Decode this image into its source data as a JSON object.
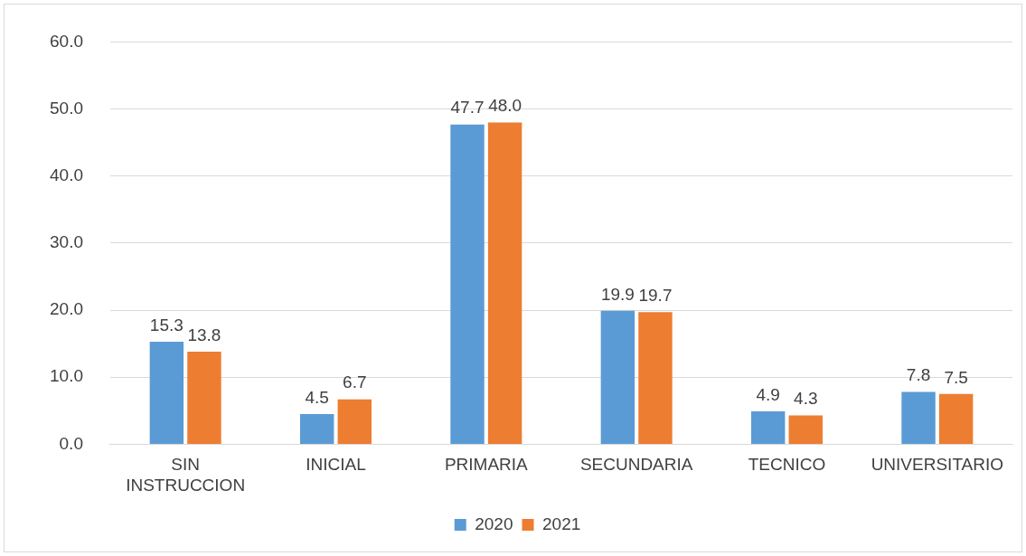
{
  "chart_data": {
    "type": "bar",
    "categories": [
      "SIN INSTRUCCION",
      "INICIAL",
      "PRIMARIA",
      "SECUNDARIA",
      "TECNICO",
      "UNIVERSITARIO"
    ],
    "series": [
      {
        "name": "2020",
        "color": "#5b9bd5",
        "values": [
          15.3,
          4.5,
          47.7,
          19.9,
          4.9,
          7.8
        ],
        "value_labels": [
          "15.3",
          "4.5",
          "47.7",
          "19.9",
          "4.9",
          "7.8"
        ]
      },
      {
        "name": "2021",
        "color": "#ed7d31",
        "values": [
          13.8,
          6.7,
          48.0,
          19.7,
          4.3,
          7.5
        ],
        "value_labels": [
          "13.8",
          "6.7",
          "48.0",
          "19.7",
          "4.3",
          "7.5"
        ]
      }
    ],
    "ylim": [
      0,
      60
    ],
    "yticks": [
      {
        "value": 0,
        "label": "0.0"
      },
      {
        "value": 10,
        "label": "10.0"
      },
      {
        "value": 20,
        "label": "20.0"
      },
      {
        "value": 30,
        "label": "30.0"
      },
      {
        "value": 40,
        "label": "40.0"
      },
      {
        "value": 50,
        "label": "50.0"
      },
      {
        "value": 60,
        "label": "60.0"
      }
    ],
    "grid": "y",
    "legend": "bottom"
  }
}
